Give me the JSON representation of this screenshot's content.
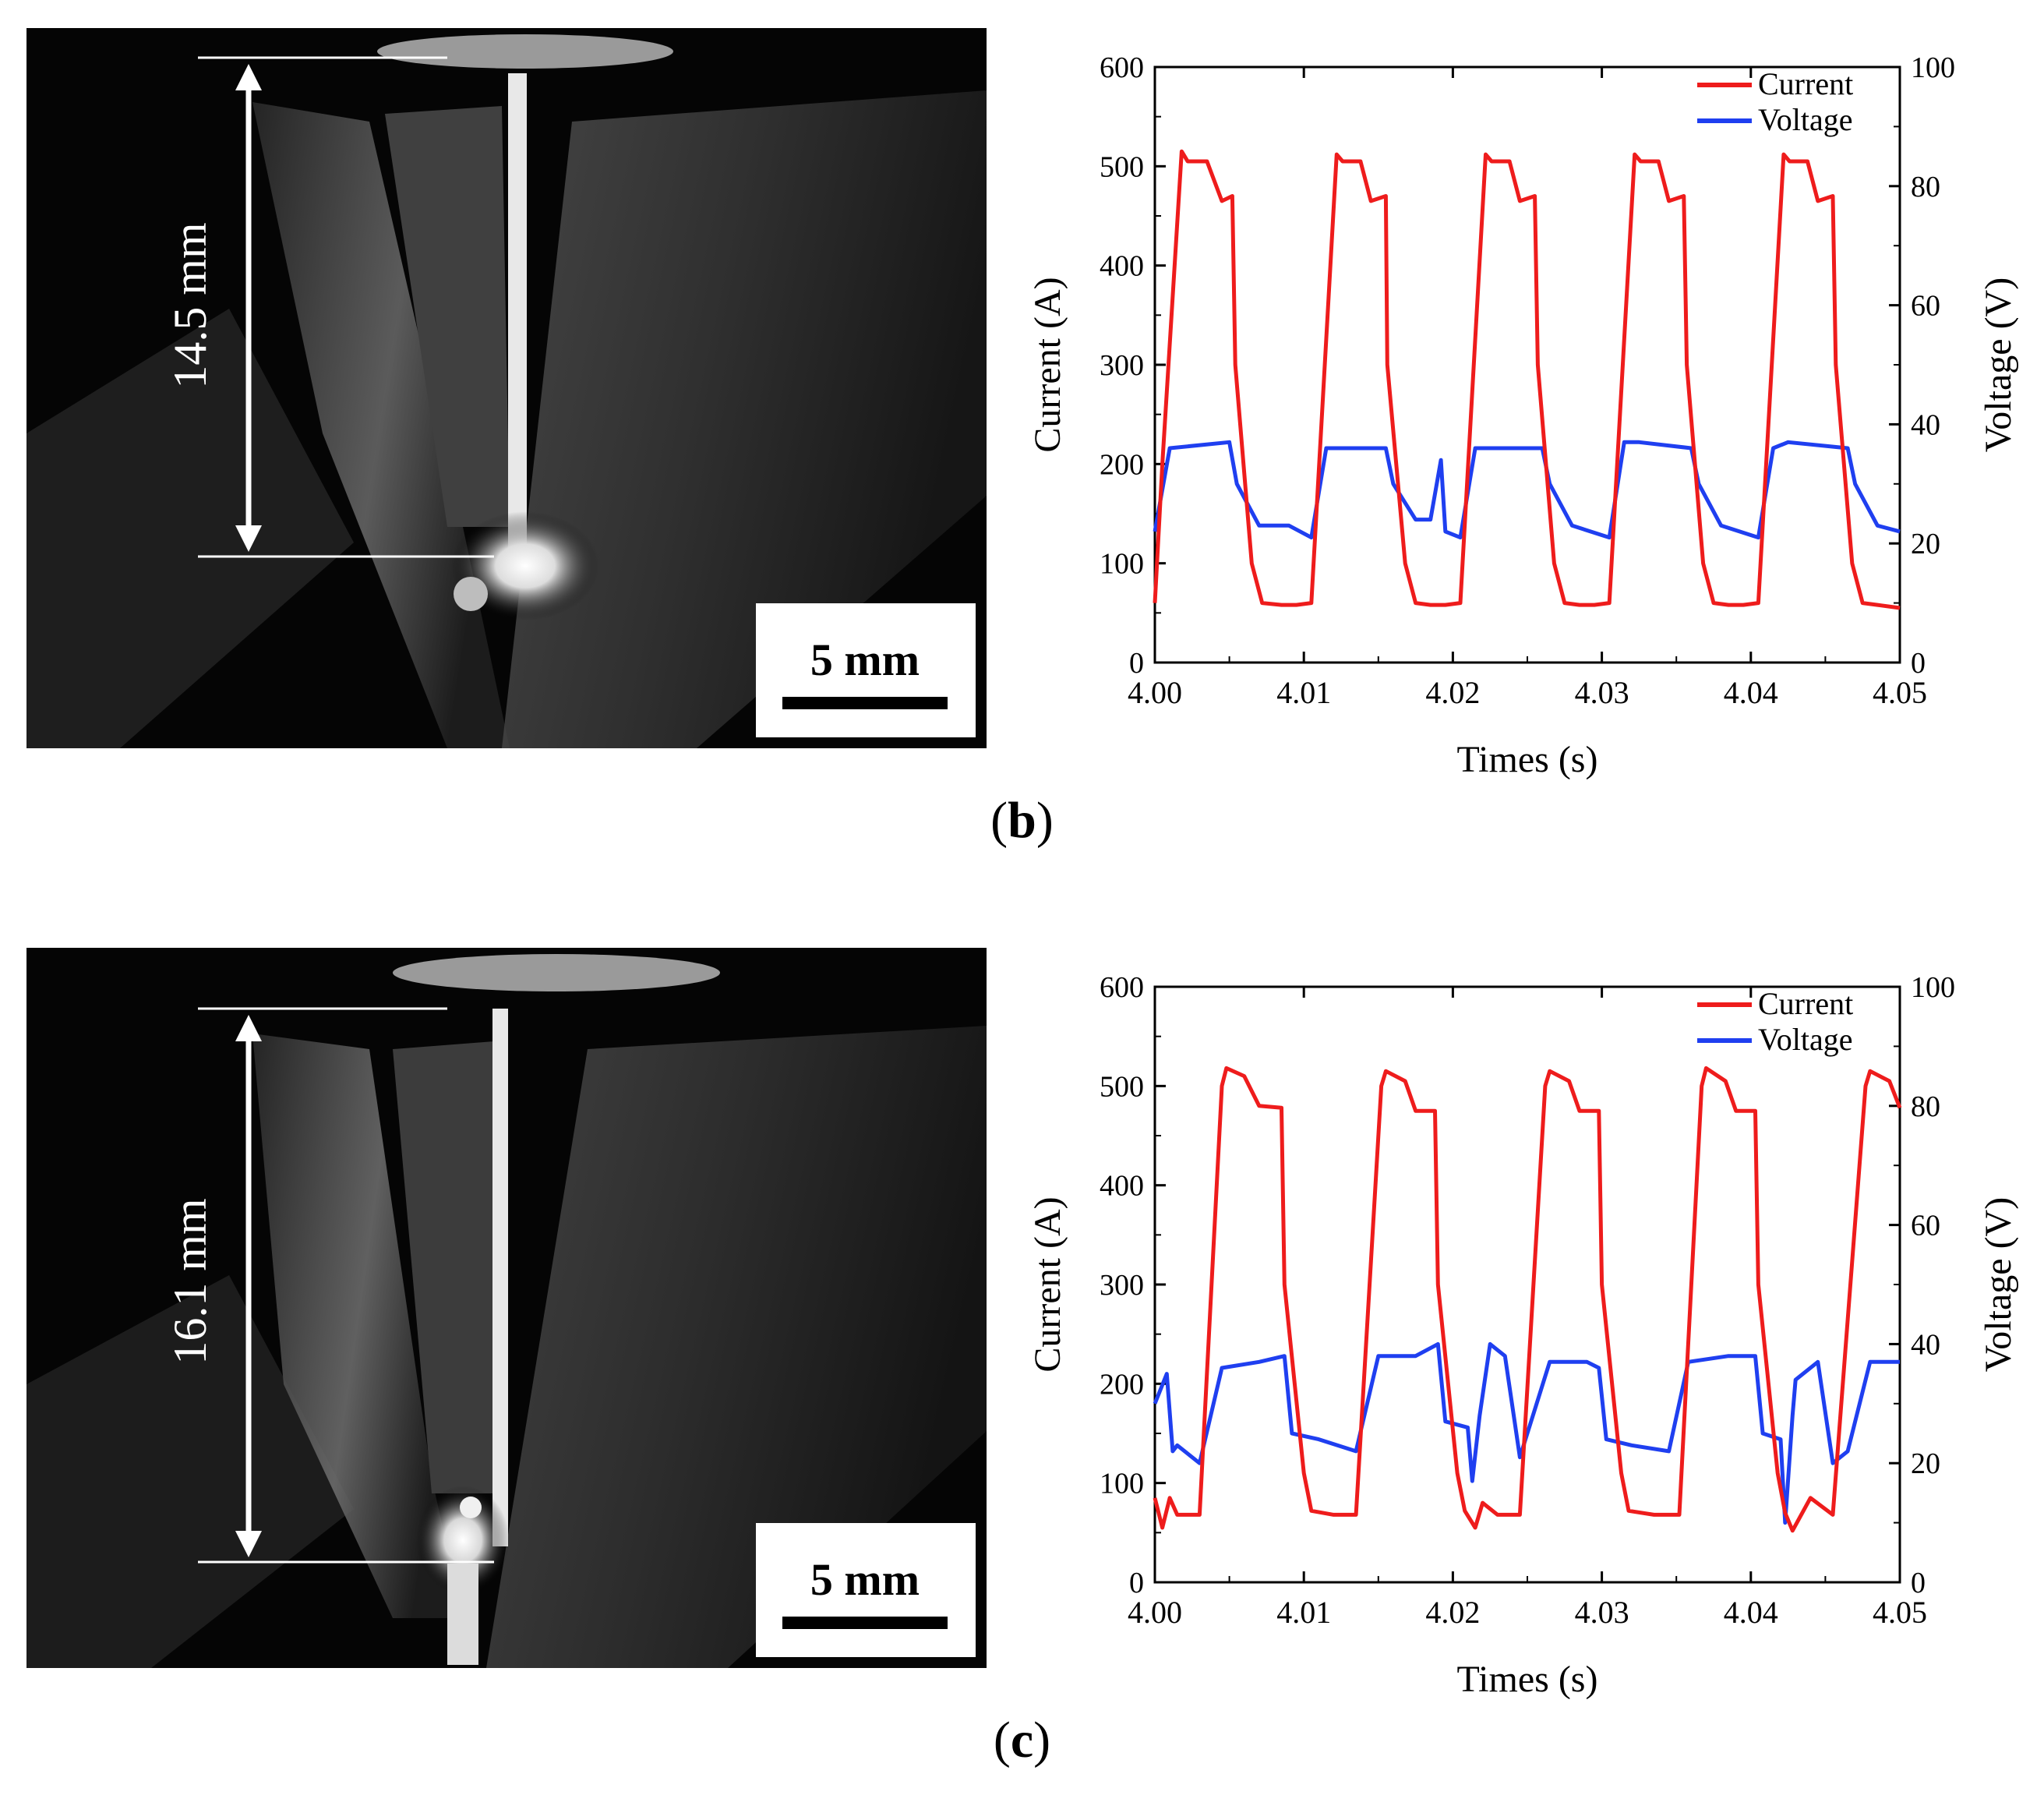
{
  "figure": {
    "panels": [
      {
        "id": "b",
        "label_open": "(",
        "label_letter": "b",
        "label_close": ")",
        "photo": {
          "measure_label": "14.5 mm",
          "scale_label": "5 mm"
        }
      },
      {
        "id": "c",
        "label_open": "(",
        "label_letter": "c",
        "label_close": ")",
        "photo": {
          "measure_label": "16.1 mm",
          "scale_label": "5 mm"
        }
      }
    ]
  },
  "colors": {
    "current": "#ee1c1c",
    "voltage": "#1f3ff0"
  },
  "chart_data": [
    {
      "type": "line",
      "title": "",
      "xlabel": "Times (s)",
      "ylabel": "Current (A)",
      "y2label": "Voltage (V)",
      "xlim": [
        4.0,
        4.05
      ],
      "ylim": [
        0,
        600
      ],
      "y2lim": [
        0,
        100
      ],
      "xticks": [
        "4.00",
        "4.01",
        "4.02",
        "4.03",
        "4.04",
        "4.05"
      ],
      "yticks": [
        "0",
        "100",
        "200",
        "300",
        "400",
        "500",
        "600"
      ],
      "y2ticks": [
        "0",
        "20",
        "40",
        "60",
        "80",
        "100"
      ],
      "legend": {
        "position": "top-right",
        "entries": [
          "Current",
          "Voltage"
        ]
      },
      "series": [
        {
          "name": "Current",
          "axis": "left",
          "x": [
            4.0,
            4.0005,
            4.0018,
            4.0022,
            4.0035,
            4.0045,
            4.0052,
            4.0054,
            4.0065,
            4.0072,
            4.0085,
            4.0095,
            4.0105,
            4.0122,
            4.0126,
            4.0138,
            4.0145,
            4.0155,
            4.0156,
            4.0168,
            4.0175,
            4.0185,
            4.0195,
            4.0205,
            4.0222,
            4.0226,
            4.0238,
            4.0245,
            4.0255,
            4.0257,
            4.0268,
            4.0275,
            4.0285,
            4.0295,
            4.0305,
            4.0322,
            4.0326,
            4.0338,
            4.0345,
            4.0355,
            4.0357,
            4.0368,
            4.0375,
            4.0385,
            4.0395,
            4.0405,
            4.0422,
            4.0426,
            4.0438,
            4.0445,
            4.0455,
            4.0457,
            4.0468,
            4.0475,
            4.0485,
            4.05
          ],
          "y": [
            60,
            200,
            515,
            505,
            505,
            465,
            470,
            300,
            100,
            60,
            58,
            58,
            60,
            512,
            505,
            505,
            465,
            470,
            300,
            100,
            60,
            58,
            58,
            60,
            512,
            505,
            505,
            465,
            470,
            300,
            100,
            60,
            58,
            58,
            60,
            512,
            505,
            505,
            465,
            470,
            300,
            100,
            60,
            58,
            58,
            60,
            512,
            505,
            505,
            465,
            470,
            300,
            100,
            60,
            58,
            55
          ]
        },
        {
          "name": "Voltage",
          "axis": "right",
          "x": [
            4.0,
            4.001,
            4.005,
            4.0055,
            4.007,
            4.009,
            4.0105,
            4.0115,
            4.0155,
            4.016,
            4.0175,
            4.0185,
            4.0192,
            4.0195,
            4.0205,
            4.0215,
            4.0225,
            4.026,
            4.0265,
            4.028,
            4.0305,
            4.0315,
            4.0325,
            4.036,
            4.0365,
            4.038,
            4.0405,
            4.0415,
            4.0425,
            4.0465,
            4.047,
            4.0485,
            4.05
          ],
          "y": [
            22,
            36,
            37,
            30,
            23,
            23,
            21,
            36,
            36,
            30,
            24,
            24,
            34,
            22,
            21,
            36,
            36,
            36,
            30,
            23,
            21,
            37,
            37,
            36,
            30,
            23,
            21,
            36,
            37,
            36,
            30,
            23,
            22
          ]
        }
      ]
    },
    {
      "type": "line",
      "title": "",
      "xlabel": "Times (s)",
      "ylabel": "Current (A)",
      "y2label": "Voltage (V)",
      "xlim": [
        4.0,
        4.05
      ],
      "ylim": [
        0,
        600
      ],
      "y2lim": [
        0,
        100
      ],
      "xticks": [
        "4.00",
        "4.01",
        "4.02",
        "4.03",
        "4.04",
        "4.05"
      ],
      "yticks": [
        "0",
        "100",
        "200",
        "300",
        "400",
        "500",
        "600"
      ],
      "y2ticks": [
        "0",
        "20",
        "40",
        "60",
        "80",
        "100"
      ],
      "legend": {
        "position": "top-right",
        "entries": [
          "Current",
          "Voltage"
        ]
      },
      "series": [
        {
          "name": "Current",
          "axis": "left",
          "x": [
            4.0,
            4.0005,
            4.001,
            4.0015,
            4.003,
            4.0045,
            4.0048,
            4.006,
            4.007,
            4.0085,
            4.0087,
            4.01,
            4.0105,
            4.012,
            4.0135,
            4.0152,
            4.0155,
            4.0168,
            4.0175,
            4.0188,
            4.019,
            4.0203,
            4.0208,
            4.0215,
            4.022,
            4.023,
            4.0245,
            4.0262,
            4.0265,
            4.0278,
            4.0285,
            4.0298,
            4.03,
            4.0313,
            4.0318,
            4.0335,
            4.0352,
            4.0367,
            4.037,
            4.0383,
            4.039,
            4.0403,
            4.0405,
            4.0418,
            4.0423,
            4.0428,
            4.044,
            4.0455,
            4.0477,
            4.048,
            4.0493,
            4.05
          ],
          "y": [
            85,
            55,
            85,
            68,
            68,
            500,
            518,
            510,
            480,
            478,
            300,
            110,
            72,
            68,
            68,
            500,
            515,
            505,
            475,
            475,
            300,
            110,
            72,
            55,
            80,
            68,
            68,
            500,
            515,
            505,
            475,
            475,
            300,
            110,
            72,
            68,
            68,
            500,
            518,
            505,
            475,
            475,
            300,
            110,
            70,
            52,
            85,
            68,
            500,
            515,
            505,
            478
          ]
        },
        {
          "name": "Voltage",
          "axis": "right",
          "x": [
            4.0,
            4.0008,
            4.0012,
            4.0015,
            4.003,
            4.0045,
            4.007,
            4.0087,
            4.0092,
            4.011,
            4.0135,
            4.015,
            4.0175,
            4.019,
            4.0195,
            4.021,
            4.0213,
            4.0218,
            4.0225,
            4.0235,
            4.0245,
            4.0265,
            4.029,
            4.0298,
            4.0303,
            4.032,
            4.0345,
            4.0358,
            4.0385,
            4.0403,
            4.0408,
            4.042,
            4.0423,
            4.0428,
            4.043,
            4.0445,
            4.0455,
            4.0465,
            4.048,
            4.05
          ],
          "y": [
            30,
            35,
            22,
            23,
            20,
            36,
            37,
            38,
            25,
            24,
            22,
            38,
            38,
            40,
            27,
            26,
            17,
            28,
            40,
            38,
            21,
            37,
            37,
            36,
            24,
            23,
            22,
            37,
            38,
            38,
            25,
            24,
            10,
            28,
            34,
            37,
            20,
            22,
            37,
            37
          ]
        }
      ]
    }
  ]
}
